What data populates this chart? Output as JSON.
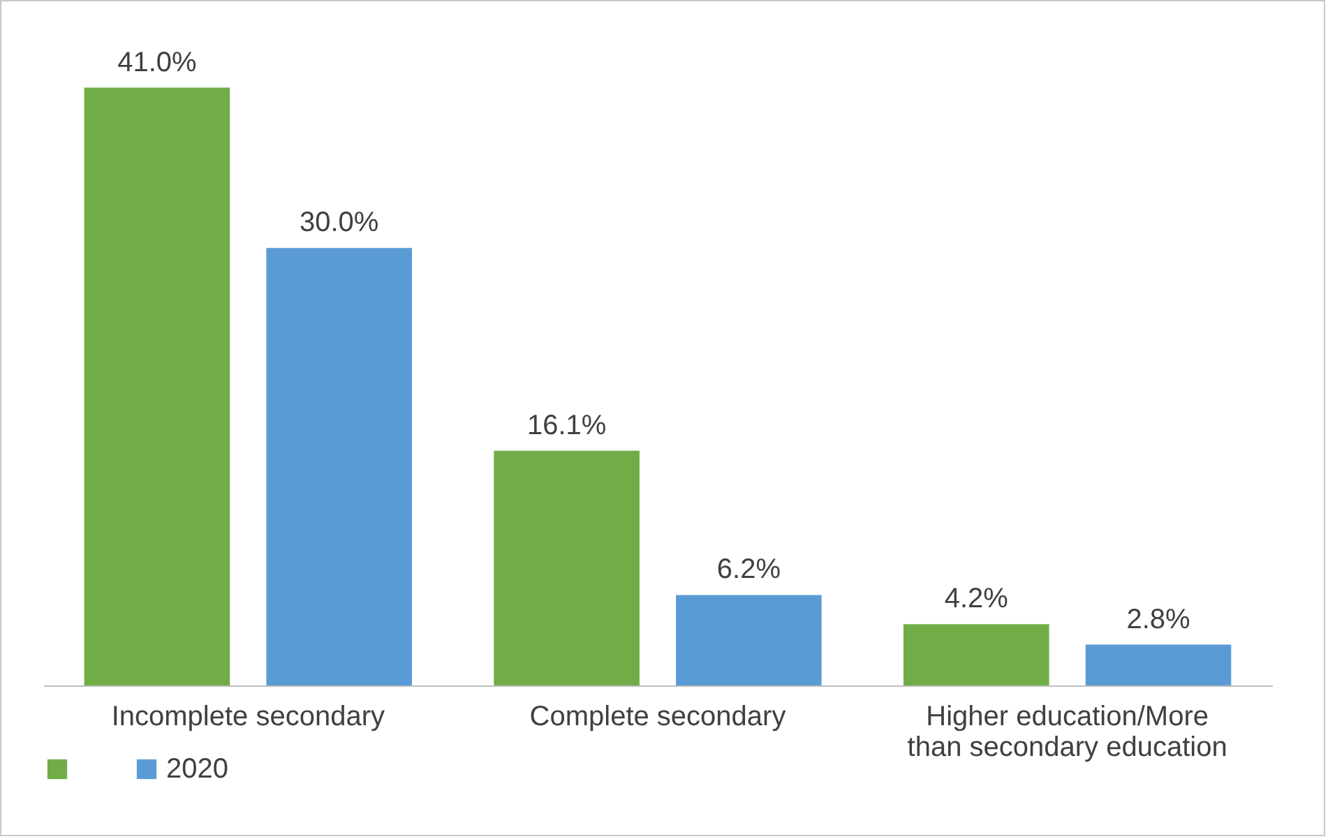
{
  "chart_data": {
    "type": "bar",
    "categories": [
      "Incomplete secondary",
      "Complete secondary",
      "Higher education/More than secondary education"
    ],
    "series": [
      {
        "color": "#70ad47",
        "values": [
          41.0,
          16.1,
          4.2
        ],
        "value_labels": [
          "41.0%",
          "16.1%",
          "4.2%"
        ]
      },
      {
        "name": "2020",
        "color": "#5b9bd5",
        "values": [
          30.0,
          6.2,
          2.8
        ],
        "value_labels": [
          "30.0%",
          "6.2%",
          "2.8%"
        ]
      }
    ],
    "legend": "bottom",
    "grid": false
  }
}
